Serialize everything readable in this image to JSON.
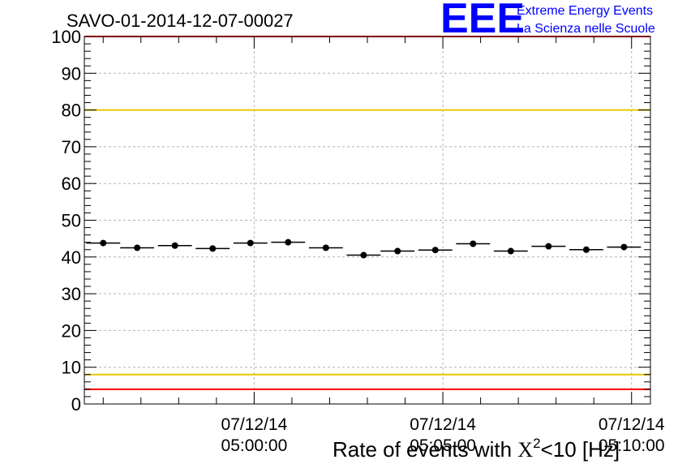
{
  "header": {
    "run_title": "SAVO-01-2014-12-07-00027"
  },
  "logo": {
    "acronym": "EEE",
    "line1": "Extreme Energy Events",
    "line2": "La Scienza nelle Scuole",
    "color": "#0000ff"
  },
  "chart_data": {
    "type": "scatter",
    "title": "SAVO-01-2014-12-07-00027",
    "xlabel": "Rate of events with X^2<10 [Hz]",
    "xlabel_parts": {
      "prefix": "Rate of events with ",
      "var": "X",
      "sup": "2",
      "suffix": "<10 [Hz]"
    },
    "ylabel": "",
    "ylim": [
      0,
      100
    ],
    "yticks": [
      0,
      10,
      20,
      30,
      40,
      50,
      60,
      70,
      80,
      90,
      100
    ],
    "yticks_labels": [
      "0",
      "10",
      "20",
      "30",
      "40",
      "50",
      "60",
      "70",
      "80",
      "90",
      "100"
    ],
    "xlim_minutes": [
      -4.5,
      10.5
    ],
    "xticks": [
      {
        "minute": 0,
        "date": "07/12/14",
        "time": "05:00:00"
      },
      {
        "minute": 5,
        "date": "07/12/14",
        "time": "05:05:00"
      },
      {
        "minute": 10,
        "date": "07/12/14",
        "time": "05:10:00"
      }
    ],
    "bin_width_minutes": 0.9,
    "bin_centers_minutes": [
      -4.0,
      -3.1,
      -2.1,
      -1.1,
      -0.1,
      0.9,
      1.9,
      2.9,
      3.8,
      4.8,
      5.8,
      6.8,
      7.8,
      8.8,
      9.8
    ],
    "values": [
      43.8,
      42.5,
      43.1,
      42.3,
      43.8,
      44.0,
      42.5,
      40.5,
      41.6,
      41.9,
      43.6,
      41.6,
      42.9,
      42.0,
      42.7
    ],
    "errors": [
      0.7,
      0.7,
      0.7,
      0.7,
      0.7,
      0.7,
      0.7,
      0.7,
      0.7,
      0.7,
      0.7,
      0.7,
      0.7,
      0.7,
      0.7
    ],
    "reference_lines": [
      {
        "name": "upper-warning",
        "y": 80,
        "color": "#e8c800"
      },
      {
        "name": "lower-warning",
        "y": 8,
        "color": "#e8c800"
      },
      {
        "name": "lower-alarm",
        "y": 4,
        "color": "#ff0000"
      },
      {
        "name": "upper-alarm",
        "y": 100,
        "color": "#ff0000"
      }
    ],
    "grid": true,
    "marker_color": "#000000"
  }
}
